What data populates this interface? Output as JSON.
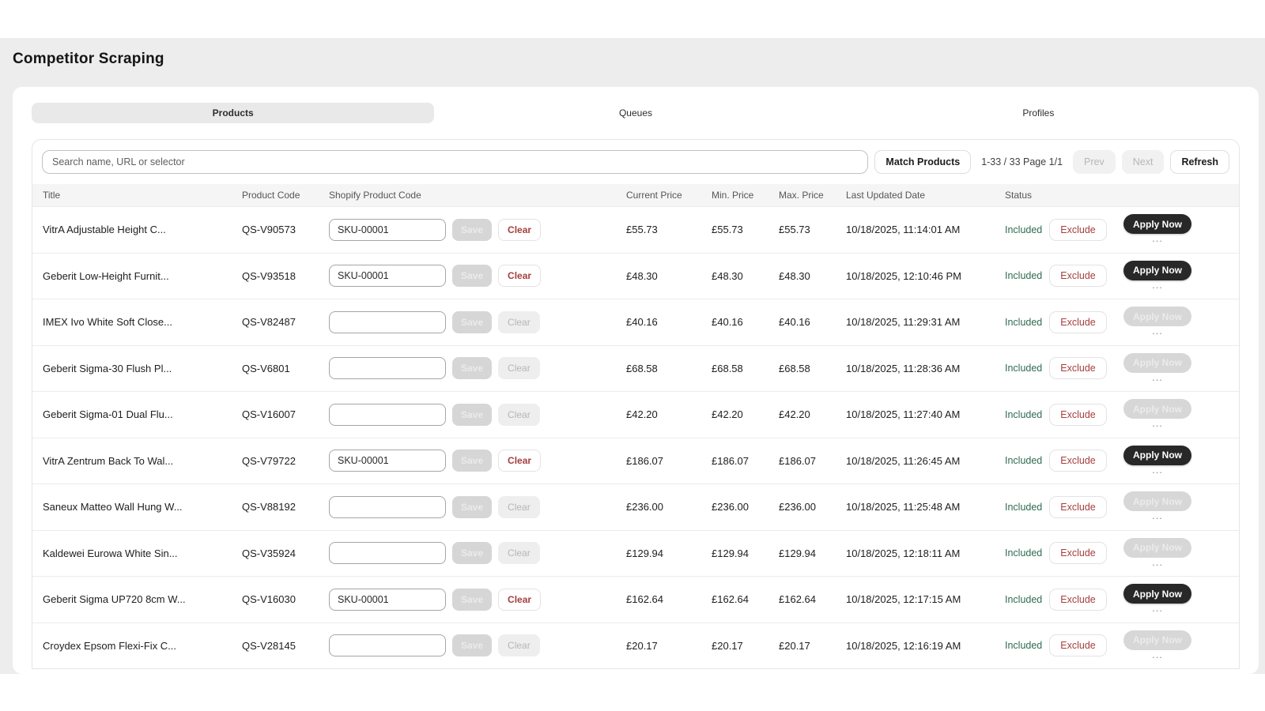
{
  "page": {
    "title": "Competitor Scraping"
  },
  "tabs": [
    {
      "label": "Products",
      "active": true
    },
    {
      "label": "Queues",
      "active": false
    },
    {
      "label": "Profiles",
      "active": false
    }
  ],
  "toolbar": {
    "search_placeholder": "Search name, URL or selector",
    "match_products_label": "Match Products",
    "page_info": "1-33 / 33 Page 1/1",
    "prev_label": "Prev",
    "next_label": "Next",
    "refresh_label": "Refresh"
  },
  "table": {
    "columns": [
      "Title",
      "Product Code",
      "Shopify Product Code",
      "Current Price",
      "Min. Price",
      "Max. Price",
      "Last Updated Date",
      "Status"
    ],
    "row_actions": {
      "save": "Save",
      "clear": "Clear",
      "exclude": "Exclude",
      "apply": "Apply Now",
      "more": "..."
    },
    "rows": [
      {
        "title": "VitrA Adjustable Height C...",
        "code": "QS-V90573",
        "sku": "SKU-00001",
        "current": "£55.73",
        "min": "£55.73",
        "max": "£55.73",
        "updated": "10/18/2025, 11:14:01 AM",
        "status": "Included"
      },
      {
        "title": "Geberit Low-Height Furnit...",
        "code": "QS-V93518",
        "sku": "SKU-00001",
        "current": "£48.30",
        "min": "£48.30",
        "max": "£48.30",
        "updated": "10/18/2025, 12:10:46 PM",
        "status": "Included"
      },
      {
        "title": "IMEX Ivo White Soft Close...",
        "code": "QS-V82487",
        "sku": "",
        "current": "£40.16",
        "min": "£40.16",
        "max": "£40.16",
        "updated": "10/18/2025, 11:29:31 AM",
        "status": "Included"
      },
      {
        "title": "Geberit Sigma-30 Flush Pl...",
        "code": "QS-V6801",
        "sku": "",
        "current": "£68.58",
        "min": "£68.58",
        "max": "£68.58",
        "updated": "10/18/2025, 11:28:36 AM",
        "status": "Included"
      },
      {
        "title": "Geberit Sigma-01 Dual Flu...",
        "code": "QS-V16007",
        "sku": "",
        "current": "£42.20",
        "min": "£42.20",
        "max": "£42.20",
        "updated": "10/18/2025, 11:27:40 AM",
        "status": "Included"
      },
      {
        "title": "VitrA Zentrum Back To Wal...",
        "code": "QS-V79722",
        "sku": "SKU-00001",
        "current": "£186.07",
        "min": "£186.07",
        "max": "£186.07",
        "updated": "10/18/2025, 11:26:45 AM",
        "status": "Included"
      },
      {
        "title": "Saneux Matteo Wall Hung W...",
        "code": "QS-V88192",
        "sku": "",
        "current": "£236.00",
        "min": "£236.00",
        "max": "£236.00",
        "updated": "10/18/2025, 11:25:48 AM",
        "status": "Included"
      },
      {
        "title": "Kaldewei Eurowa White Sin...",
        "code": "QS-V35924",
        "sku": "",
        "current": "£129.94",
        "min": "£129.94",
        "max": "£129.94",
        "updated": "10/18/2025, 12:18:11 AM",
        "status": "Included"
      },
      {
        "title": "Geberit Sigma UP720 8cm W...",
        "code": "QS-V16030",
        "sku": "SKU-00001",
        "current": "£162.64",
        "min": "£162.64",
        "max": "£162.64",
        "updated": "10/18/2025, 12:17:15 AM",
        "status": "Included"
      },
      {
        "title": "Croydex Epsom Flexi-Fix C...",
        "code": "QS-V28145",
        "sku": "",
        "current": "£20.17",
        "min": "£20.17",
        "max": "£20.17",
        "updated": "10/18/2025, 12:16:19 AM",
        "status": "Included"
      }
    ]
  },
  "colors": {
    "page_background": "#ededed",
    "accent_dark": "#282828",
    "included_green": "#2f6b51",
    "danger_red": "#a63e3e"
  }
}
